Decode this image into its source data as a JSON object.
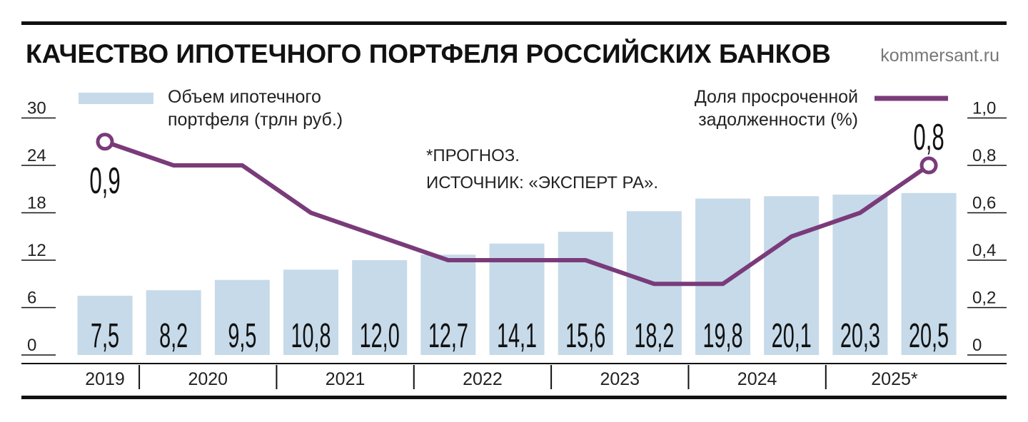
{
  "title": "КАЧЕСТВО ИПОТЕЧНОГО ПОРТФЕЛЯ РОССИЙСКИХ БАНКОВ",
  "source": "kommersant.ru",
  "chart_data": {
    "type": "bar-line",
    "categories": [
      "2019",
      "2020",
      null,
      "2021",
      null,
      "2022",
      null,
      "2023",
      null,
      "2024",
      null,
      "2025*",
      null
    ],
    "notes": [
      "*ПРОГНОЗ.",
      "ИСТОЧНИК: «ЭКСПЕРТ РА»."
    ],
    "series": [
      {
        "name": "Объем ипотечного портфеля (трлн руб.)",
        "type": "bar",
        "color": "#c6dae9",
        "values": [
          7.5,
          8.2,
          9.5,
          10.8,
          12.0,
          12.7,
          14.1,
          15.6,
          18.2,
          19.8,
          20.1,
          20.3,
          20.5
        ],
        "value_labels": [
          "7,5",
          "8,2",
          "9,5",
          "10,8",
          "12,0",
          "12,7",
          "14,1",
          "15,6",
          "18,2",
          "19,8",
          "20,1",
          "20,3",
          "20,5"
        ]
      },
      {
        "name": "Доля просроченной задолженности (%)",
        "type": "line",
        "axis": "y2",
        "color": "#7a3b7a",
        "values": [
          0.9,
          0.8,
          0.8,
          0.6,
          0.5,
          0.4,
          0.4,
          0.4,
          0.3,
          0.3,
          0.5,
          0.6,
          0.8
        ],
        "value_labels": [
          "0,9",
          null,
          null,
          null,
          null,
          null,
          null,
          null,
          null,
          null,
          null,
          null,
          "0,8"
        ]
      }
    ],
    "ylim": [
      0,
      30
    ],
    "yticks": [
      0,
      6,
      12,
      18,
      24,
      30
    ],
    "y2lim": [
      0,
      1.0
    ],
    "y2ticks": [
      0,
      {
        "value": 0.2,
        "label": "0,2"
      },
      {
        "value": 0.4,
        "label": "0,4"
      },
      {
        "value": 0.6,
        "label": "0,6"
      },
      {
        "value": 0.8,
        "label": "0,8"
      },
      {
        "value": 1.0,
        "label": "1,0"
      }
    ]
  }
}
